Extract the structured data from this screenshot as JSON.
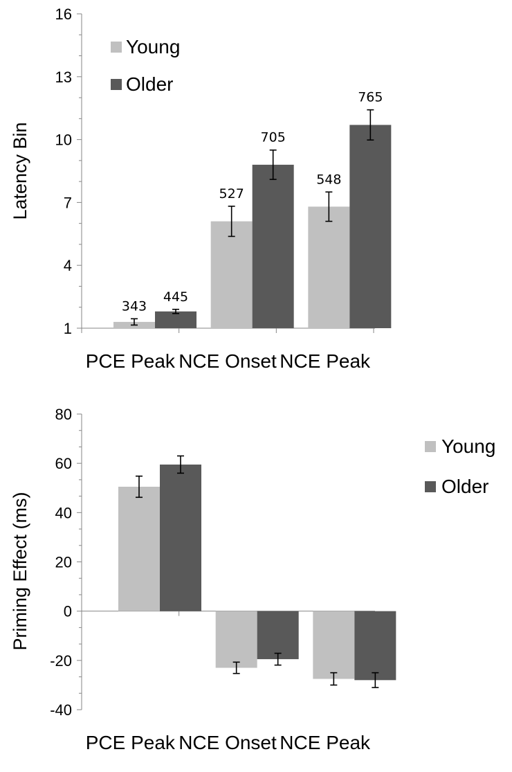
{
  "chart_data": [
    {
      "type": "bar",
      "title": "",
      "ylabel": "Latency Bin",
      "xlabel": "",
      "ylim": [
        1,
        16
      ],
      "yticks": [
        1,
        4,
        7,
        10,
        13,
        16
      ],
      "categories": [
        "PCE Peak",
        "NCE Onset",
        "NCE Peak"
      ],
      "series": [
        {
          "name": "Young",
          "color": "#c0c0c0",
          "values": [
            1.3,
            6.1,
            6.8
          ],
          "errors": [
            0.15,
            0.72,
            0.7
          ],
          "data_labels": [
            "343",
            "527",
            "548"
          ]
        },
        {
          "name": "Older",
          "color": "#595959",
          "values": [
            1.8,
            8.8,
            10.7
          ],
          "errors": [
            0.1,
            0.7,
            0.72
          ],
          "data_labels": [
            "445",
            "705",
            "765"
          ]
        }
      ],
      "legend_position": "top-left"
    },
    {
      "type": "bar",
      "title": "",
      "ylabel": "Priming Effect (ms)",
      "xlabel": "",
      "ylim": [
        -40,
        80
      ],
      "yticks": [
        -40,
        -20,
        0,
        20,
        40,
        60,
        80
      ],
      "categories": [
        "PCE Peak",
        "NCE Onset",
        "NCE Peak"
      ],
      "series": [
        {
          "name": "Young",
          "color": "#c0c0c0",
          "values": [
            50.5,
            -23,
            -27.5
          ],
          "errors": [
            4.3,
            2.3,
            2.5
          ]
        },
        {
          "name": "Older",
          "color": "#595959",
          "values": [
            59.5,
            -19.5,
            -28
          ],
          "errors": [
            3.5,
            2.4,
            3.0
          ]
        }
      ],
      "legend_position": "top-right"
    }
  ]
}
